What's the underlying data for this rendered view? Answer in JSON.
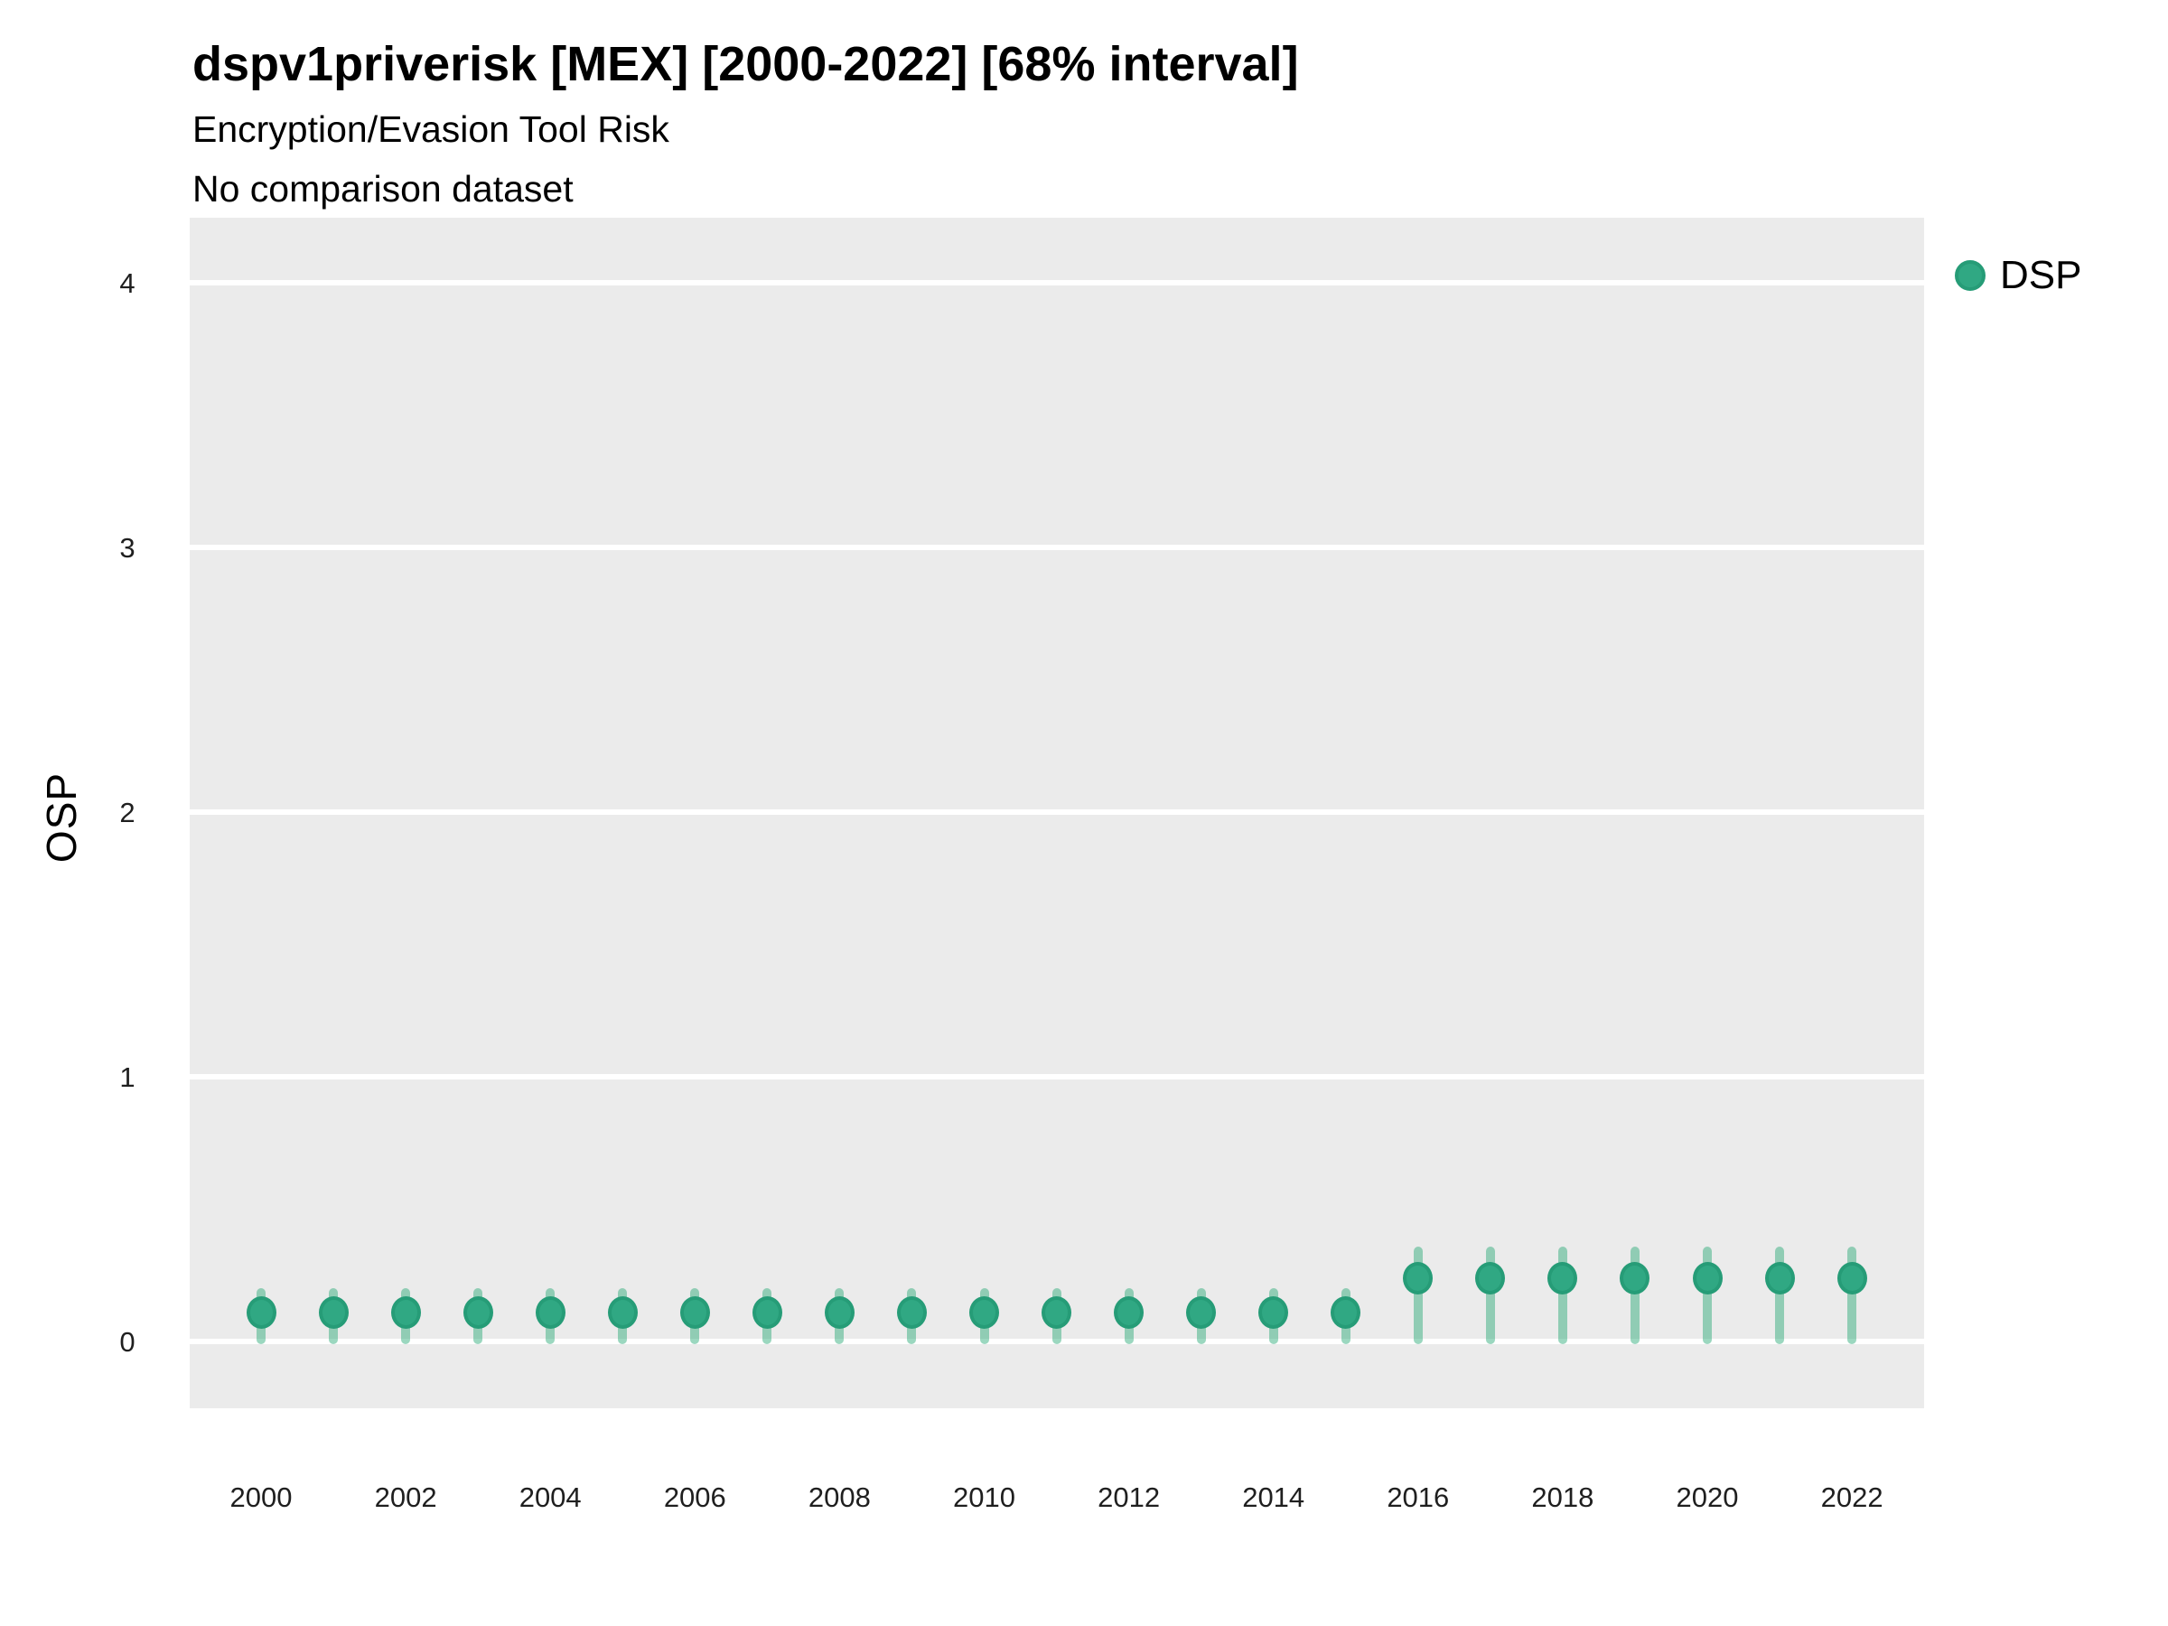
{
  "header": {
    "title": "dspv1priverisk [MEX] [2000-2022] [68% interval]",
    "subtitle": "Encryption/Evasion Tool Risk",
    "comparison_note": "No comparison dataset"
  },
  "legend": {
    "items": [
      {
        "label": "DSP",
        "color": "#30a883"
      }
    ],
    "position": "right"
  },
  "chart_data": {
    "type": "scatter",
    "title": "dspv1priverisk [MEX] [2000-2022] [68% interval]",
    "subtitle": "Encryption/Evasion Tool Risk",
    "note": "No comparison dataset",
    "xlabel": "",
    "ylabel": "OSP",
    "interval_label": "68% interval",
    "x": [
      2000,
      2001,
      2002,
      2003,
      2004,
      2005,
      2006,
      2007,
      2008,
      2009,
      2010,
      2011,
      2012,
      2013,
      2014,
      2015,
      2016,
      2017,
      2018,
      2019,
      2020,
      2021,
      2022
    ],
    "series": [
      {
        "name": "DSP",
        "values": [
          0.11,
          0.11,
          0.11,
          0.11,
          0.11,
          0.11,
          0.11,
          0.11,
          0.11,
          0.11,
          0.11,
          0.11,
          0.11,
          0.11,
          0.11,
          0.11,
          0.24,
          0.24,
          0.24,
          0.24,
          0.24,
          0.24,
          0.24
        ],
        "interval_low": [
          -0.01,
          -0.01,
          -0.01,
          -0.01,
          -0.01,
          -0.01,
          -0.01,
          -0.01,
          -0.01,
          -0.01,
          -0.01,
          -0.01,
          -0.01,
          -0.01,
          -0.01,
          -0.01,
          -0.01,
          -0.01,
          -0.01,
          -0.01,
          -0.01,
          -0.01,
          -0.01
        ],
        "interval_high": [
          0.2,
          0.2,
          0.2,
          0.2,
          0.2,
          0.2,
          0.2,
          0.2,
          0.2,
          0.2,
          0.2,
          0.2,
          0.2,
          0.2,
          0.2,
          0.2,
          0.36,
          0.36,
          0.36,
          0.36,
          0.36,
          0.36,
          0.36
        ]
      }
    ],
    "yticks": [
      0,
      1,
      2,
      3,
      4
    ],
    "xticks": [
      2000,
      2002,
      2004,
      2006,
      2008,
      2010,
      2012,
      2014,
      2016,
      2018,
      2020,
      2022
    ],
    "ylim": [
      -0.25,
      4.25
    ],
    "grid": "horizontal-major-only",
    "legend_position": "right",
    "style": {
      "panel_bg": "#ebebeb",
      "grid_color": "#ffffff",
      "point_fill": "#30a883",
      "point_stroke": "#269c77",
      "interval_color": "rgba(42,170,120,0.47)"
    }
  }
}
